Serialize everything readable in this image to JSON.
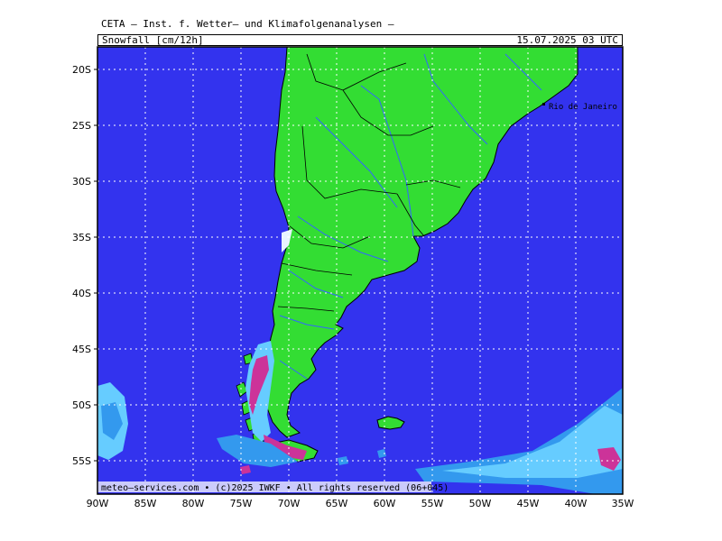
{
  "header": {
    "title": "CETA — Inst. f. Wetter— und Klimafolgenanalysen —",
    "variable": "Snowfall [cm/12h]",
    "datetime": "15.07.2025  03 UTC"
  },
  "map": {
    "region": "Southern South America",
    "lat_ticks": [
      "20S",
      "25S",
      "30S",
      "35S",
      "40S",
      "45S",
      "50S",
      "55S"
    ],
    "lon_ticks": [
      "90W",
      "85W",
      "80W",
      "75W",
      "70W",
      "65W",
      "60W",
      "55W",
      "50W",
      "45W",
      "40W",
      "35W"
    ],
    "city_label": "Rio de Janeiro",
    "footer": "meteo—services.com • (c)2025 IWKF • All rights reserved (06+045)",
    "colors": {
      "ocean": "#3333ee",
      "land": "#33dd33",
      "border": "#000000",
      "rivers": "#3366ff",
      "snow_light": "#66ccff",
      "snow_medium": "#3399ee",
      "snow_heavy": "#cc3399",
      "snow_white": "#e8f4ff",
      "grid": "#ffffff"
    }
  }
}
